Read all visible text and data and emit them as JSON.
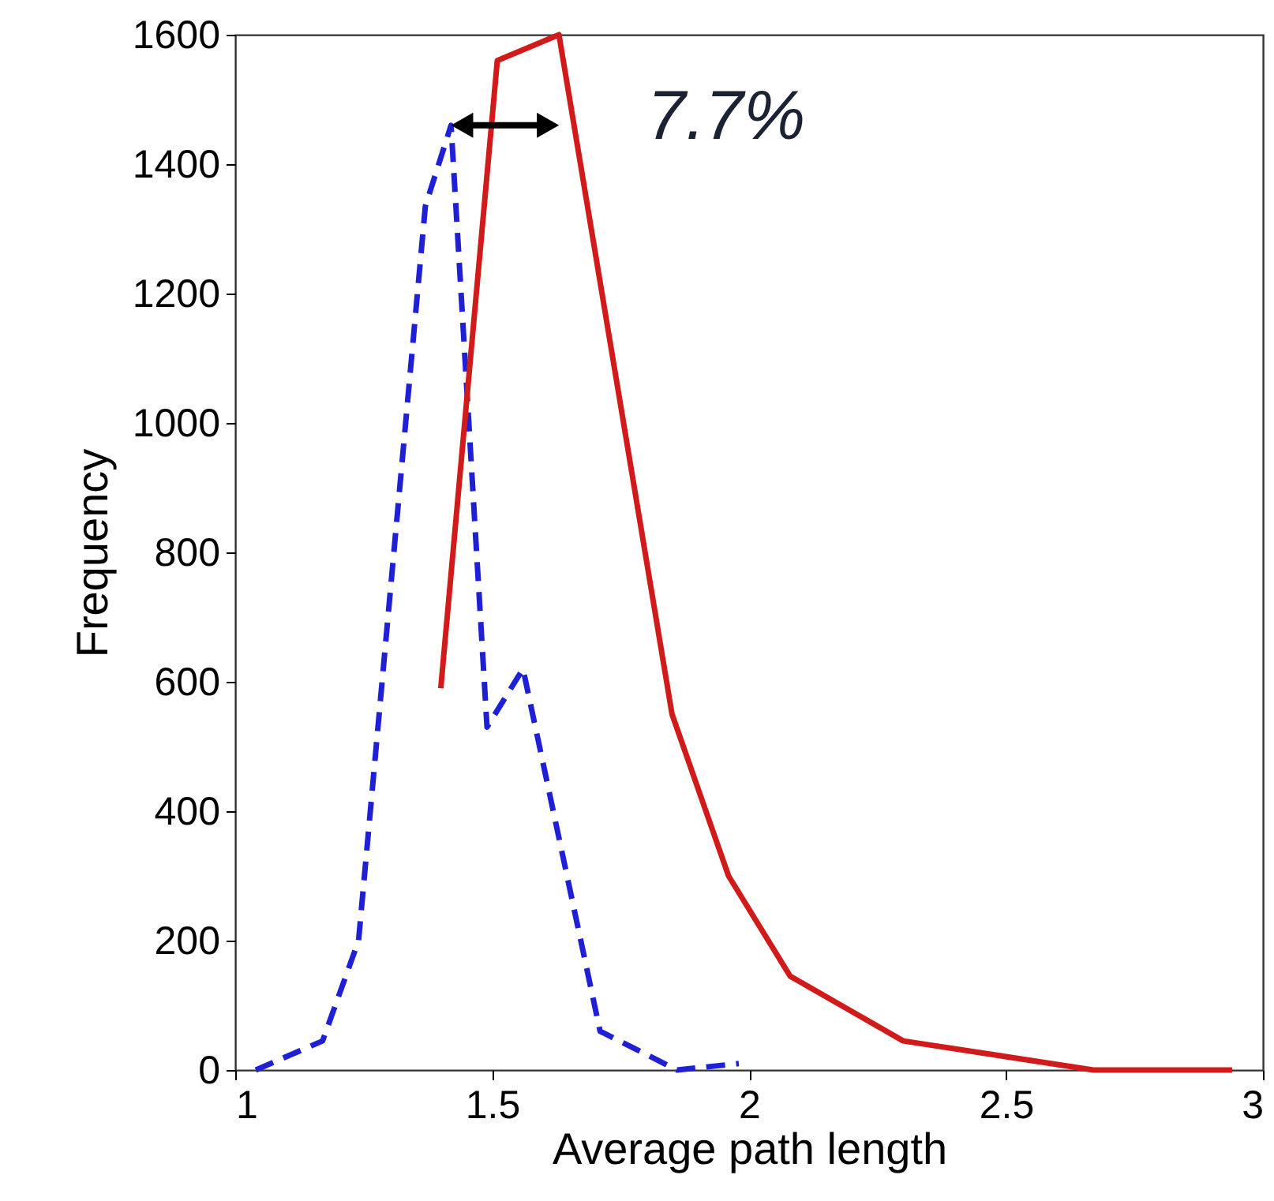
{
  "chart_data": {
    "type": "line",
    "xlabel": "Average path length",
    "ylabel": "Frequency",
    "xlim": [
      1,
      3
    ],
    "xticks": [
      1,
      1.5,
      2,
      2.5,
      3
    ],
    "ylim": [
      0,
      1600
    ],
    "yticks": [
      0,
      200,
      400,
      600,
      800,
      1000,
      1200,
      1400,
      1600
    ],
    "grid": false,
    "marker": "none",
    "series": [
      {
        "color": "#1f1fd6",
        "line_style": "dashed",
        "x": [
          1.04,
          1.17,
          1.24,
          1.37,
          1.42,
          1.49,
          1.56,
          1.71,
          1.86,
          1.98
        ],
        "values": [
          0,
          45,
          200,
          1335,
          1460,
          530,
          620,
          60,
          0,
          10
        ]
      },
      {
        "color": "#d11a1a",
        "line_style": "solid",
        "x": [
          1.4,
          1.51,
          1.63,
          1.85,
          1.96,
          2.08,
          2.3,
          2.67,
          2.94
        ],
        "values": [
          590,
          1560,
          1600,
          550,
          300,
          145,
          45,
          0,
          0
        ]
      }
    ],
    "annotations": [
      "7.7%"
    ]
  }
}
